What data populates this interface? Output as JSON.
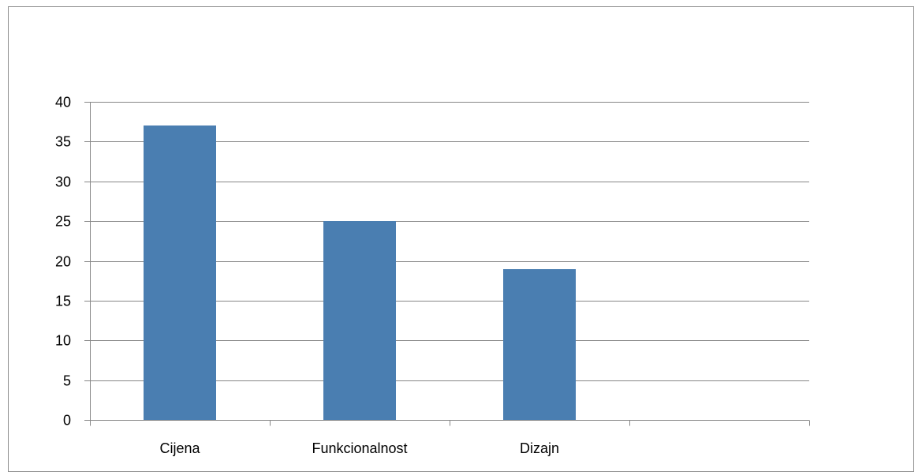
{
  "chart_data": {
    "type": "bar",
    "title": "",
    "xlabel": "",
    "ylabel": "",
    "categories": [
      "Cijena",
      "Funkcionalnost",
      "Dizajn",
      ""
    ],
    "series": [
      {
        "values": [
          37,
          25,
          19,
          null
        ],
        "color": "#4a7eb1"
      }
    ],
    "ylim": [
      0,
      40
    ],
    "yticks": [
      0,
      5,
      10,
      15,
      20,
      25,
      30,
      35,
      40
    ],
    "grid": true,
    "legend": "none"
  },
  "colors": {
    "bar": "#4a7eb1",
    "gridline": "#878787",
    "axis": "#878787",
    "frame": "#8c8c8c",
    "text": "#000000"
  }
}
